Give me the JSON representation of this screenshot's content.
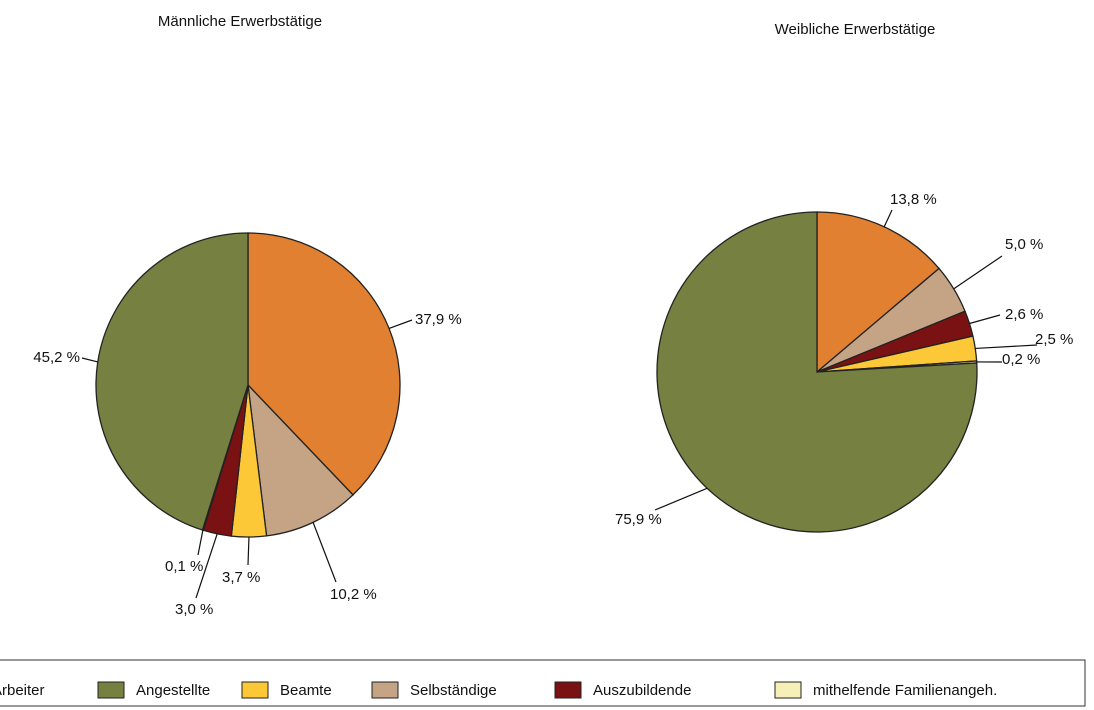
{
  "chart_data": [
    {
      "type": "pie",
      "title": "Männliche Erwerbstätige",
      "categories": [
        "Arbeiter",
        "Selbständige",
        "Beamte",
        "Auszubildende",
        "mithelfende Familienangeh.",
        "Angestellte"
      ],
      "values": [
        37.9,
        10.2,
        3.7,
        3.0,
        0.1,
        45.2
      ],
      "value_labels": [
        "37,9 %",
        "10,2 %",
        "3,7 %",
        "3,0 %",
        "0,1 %",
        "45,2 %"
      ],
      "colors": [
        "#e08030",
        "#c4a484",
        "#fcc838",
        "#7a1214",
        "#f6f0b8",
        "#768040"
      ]
    },
    {
      "type": "pie",
      "title": "Weibliche Erwerbstätige",
      "categories": [
        "Arbeiter",
        "Selbständige",
        "Auszubildende",
        "Beamte",
        "mithelfende Familienangeh.",
        "Angestellte"
      ],
      "values": [
        13.8,
        5.0,
        2.6,
        2.5,
        0.2,
        75.9
      ],
      "value_labels": [
        "13,8 %",
        "5,0 %",
        "2,6 %",
        "2,5 %",
        "0,2 %",
        "75,9 %"
      ],
      "colors": [
        "#e08030",
        "#c4a484",
        "#7a1214",
        "#fcc838",
        "#f6f0b8",
        "#768040"
      ]
    }
  ],
  "legend": [
    {
      "name": "Arbeiter",
      "color": "#e08030"
    },
    {
      "name": "Angestellte",
      "color": "#768040"
    },
    {
      "name": "Beamte",
      "color": "#fcc838"
    },
    {
      "name": "Selbständige",
      "color": "#c4a484"
    },
    {
      "name": "Auszubildende",
      "color": "#7a1214"
    },
    {
      "name": "mithelfende Familienangeh.",
      "color": "#f6f0b8"
    }
  ]
}
